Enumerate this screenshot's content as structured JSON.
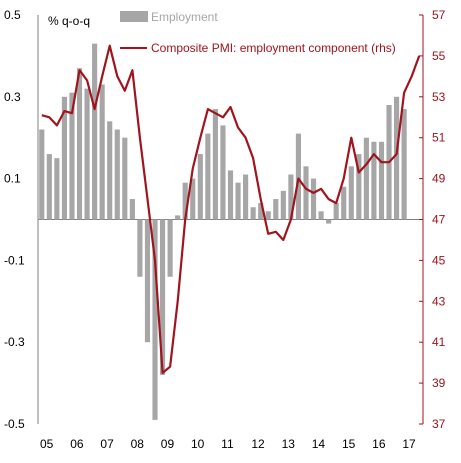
{
  "chart_data": {
    "type": "bar+line",
    "unit_label": "% q-o-q",
    "x_tick_labels": [
      "05",
      "06",
      "07",
      "08",
      "09",
      "10",
      "11",
      "12",
      "13",
      "14",
      "15",
      "16",
      "17"
    ],
    "quarters": [
      "2005Q1",
      "2005Q2",
      "2005Q3",
      "2005Q4",
      "2006Q1",
      "2006Q2",
      "2006Q3",
      "2006Q4",
      "2007Q1",
      "2007Q2",
      "2007Q3",
      "2007Q4",
      "2008Q1",
      "2008Q2",
      "2008Q3",
      "2008Q4",
      "2009Q1",
      "2009Q2",
      "2009Q3",
      "2009Q4",
      "2010Q1",
      "2010Q2",
      "2010Q3",
      "2010Q4",
      "2011Q1",
      "2011Q2",
      "2011Q3",
      "2011Q4",
      "2012Q1",
      "2012Q2",
      "2012Q3",
      "2012Q4",
      "2013Q1",
      "2013Q2",
      "2013Q3",
      "2013Q4",
      "2014Q1",
      "2014Q2",
      "2014Q3",
      "2014Q4",
      "2015Q1",
      "2015Q2",
      "2015Q3",
      "2015Q4",
      "2016Q1",
      "2016Q2",
      "2016Q3",
      "2016Q4",
      "2017Q1",
      "2017Q2",
      "2017Q3"
    ],
    "left_axis": {
      "min": -0.5,
      "max": 0.5,
      "ticks": [
        "0.5",
        "0.3",
        "0.1",
        "-0.1",
        "-0.3",
        "-0.5"
      ]
    },
    "right_axis": {
      "min": 37,
      "max": 57,
      "ticks": [
        "57",
        "55",
        "53",
        "51",
        "49",
        "47",
        "45",
        "43",
        "41",
        "39",
        "37"
      ]
    },
    "series": [
      {
        "name": "Employment",
        "kind": "bar",
        "axis": "left",
        "color": "#a6a6a6",
        "values": [
          0.22,
          0.16,
          0.15,
          0.3,
          0.31,
          0.37,
          0.32,
          0.43,
          0.33,
          0.24,
          0.22,
          0.2,
          0.05,
          -0.14,
          -0.3,
          -0.49,
          -0.38,
          -0.14,
          0.01,
          0.09,
          0.1,
          0.16,
          0.21,
          0.27,
          0.23,
          0.12,
          0.09,
          0.11,
          0.03,
          0.04,
          0.02,
          0.05,
          0.07,
          0.11,
          0.21,
          0.13,
          0.1,
          0.02,
          -0.01,
          0.04,
          0.08,
          0.13,
          0.16,
          0.2,
          0.19,
          0.19,
          0.28,
          0.3,
          0.27,
          0.0,
          0.0
        ]
      },
      {
        "name": "Composite PMI: employment component (rhs)",
        "kind": "line",
        "axis": "right",
        "color": "#a0141e",
        "values": [
          52.1,
          52.0,
          51.6,
          52.3,
          52.2,
          54.3,
          53.8,
          52.4,
          54.0,
          55.5,
          54.0,
          53.3,
          54.3,
          51.0,
          48.0,
          45.0,
          39.5,
          39.8,
          43.0,
          47.0,
          49.5,
          51.0,
          52.4,
          52.2,
          52.0,
          52.5,
          51.5,
          51.0,
          50.0,
          48.0,
          46.3,
          46.4,
          46.0,
          47.0,
          49.0,
          48.5,
          48.3,
          48.5,
          48.0,
          47.8,
          49.0,
          51.0,
          49.3,
          49.7,
          50.2,
          49.8,
          49.8,
          50.2,
          53.2,
          54.0,
          55.0
        ]
      }
    ],
    "legend_position": "top"
  }
}
